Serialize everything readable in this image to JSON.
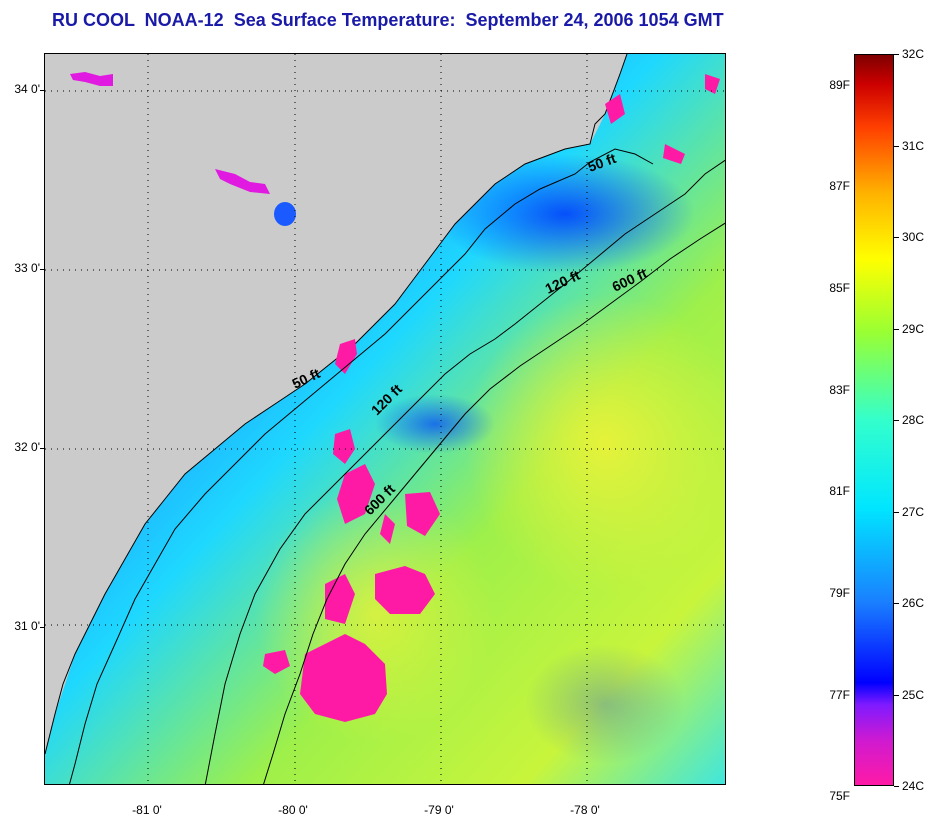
{
  "title": "RU COOL  NOAA-12  Sea Surface Temperature:  September 24, 2006 1054 GMT",
  "map": {
    "lat_labels": [
      {
        "label": "34 0'",
        "lat": 34.0
      },
      {
        "label": "33 0'",
        "lat": 33.0
      },
      {
        "label": "32 0'",
        "lat": 32.0
      },
      {
        "label": "31 0'",
        "lat": 31.0
      }
    ],
    "lon_labels": [
      {
        "label": "-81 0'",
        "lon": -81.0
      },
      {
        "label": "-80 0'",
        "lon": -80.0
      },
      {
        "label": "-79 0'",
        "lon": -79.0
      },
      {
        "label": "-78 0'",
        "lon": -78.0
      }
    ],
    "lat_range": [
      30.0,
      34.2
    ],
    "lon_range": [
      -81.7,
      -77.1
    ],
    "isobaths": [
      {
        "label": "50 ft"
      },
      {
        "label": "120 ft"
      },
      {
        "label": "600 ft"
      }
    ],
    "colors": {
      "land": "#cbcbcb",
      "cloud_mask": "#ff1aa6",
      "isobath_line": "#000000"
    }
  },
  "colorbar": {
    "fahrenheit": [
      {
        "label": "89F",
        "value": 89
      },
      {
        "label": "87F",
        "value": 87
      },
      {
        "label": "85F",
        "value": 85
      },
      {
        "label": "83F",
        "value": 83
      },
      {
        "label": "81F",
        "value": 81
      },
      {
        "label": "79F",
        "value": 79
      },
      {
        "label": "77F",
        "value": 77
      },
      {
        "label": "75F",
        "value": 75
      }
    ],
    "celsius": [
      {
        "label": "32C",
        "value": 32
      },
      {
        "label": "31C",
        "value": 31
      },
      {
        "label": "30C",
        "value": 30
      },
      {
        "label": "29C",
        "value": 29
      },
      {
        "label": "28C",
        "value": 28
      },
      {
        "label": "27C",
        "value": 27
      },
      {
        "label": "26C",
        "value": 26
      },
      {
        "label": "25C",
        "value": 25
      },
      {
        "label": "24C",
        "value": 24
      }
    ],
    "range_c": [
      24,
      32
    ]
  }
}
